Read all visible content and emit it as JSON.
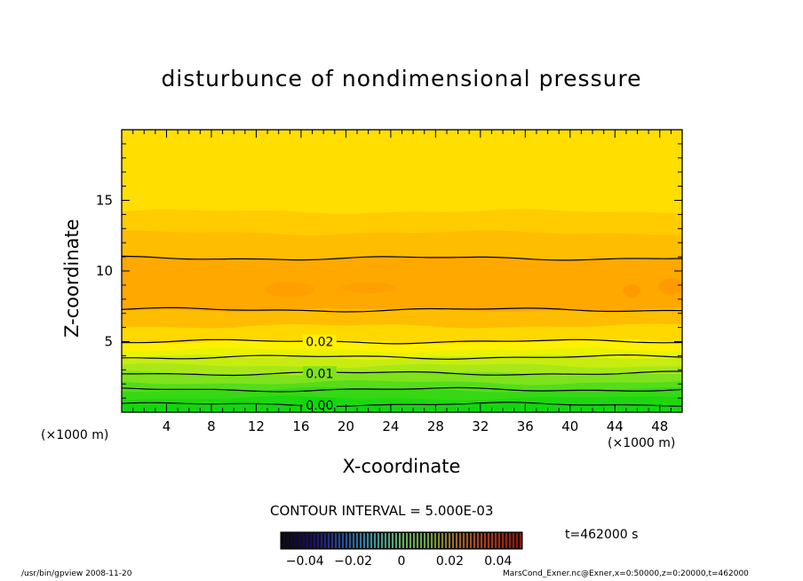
{
  "chart_data": {
    "type": "heatmap",
    "title": "disturbunce of nondimensional pressure",
    "xlabel": "X-coordinate",
    "ylabel": "Z-coordinate",
    "x_unit": "(×1000 m)",
    "y_unit": "(×1000 m)",
    "xlim": [
      0,
      50
    ],
    "ylim": [
      0,
      20
    ],
    "x_ticks": [
      4,
      8,
      12,
      16,
      20,
      24,
      28,
      32,
      36,
      40,
      44,
      48
    ],
    "y_ticks": [
      5,
      10,
      15
    ],
    "contour_labels": [
      {
        "label": "0.02",
        "x": 17.5,
        "z": 5.0
      },
      {
        "label": "0.01",
        "x": 17.5,
        "z": 2.75
      },
      {
        "label": "0.00",
        "x": 17.5,
        "z": 0.5
      }
    ],
    "contour_lines_z": [
      0.55,
      1.6,
      2.75,
      3.9,
      5.0,
      7.25,
      10.9
    ],
    "contour_interval": "CONTOUR INTERVAL = 5.000E-03",
    "colorbar": {
      "min": -0.05,
      "max": 0.05,
      "tick_labels": [
        "−0.04",
        "−0.02",
        "0",
        "0.02",
        "0.04"
      ],
      "tick_values": [
        -0.04,
        -0.02,
        0,
        0.02,
        0.04
      ]
    },
    "time_label": "t=462000 s",
    "grid": false,
    "colors": {
      "top": "#ffdd00",
      "mid": "#ffa800",
      "low": "#ffee00",
      "green_light": "#aaee22",
      "green": "#22dd11"
    }
  },
  "footer": {
    "left": "/usr/bin/gpview  2008-11-20",
    "right": "MarsCond_Exner.nc@Exner,x=0:50000,z=0:20000,t=462000"
  }
}
